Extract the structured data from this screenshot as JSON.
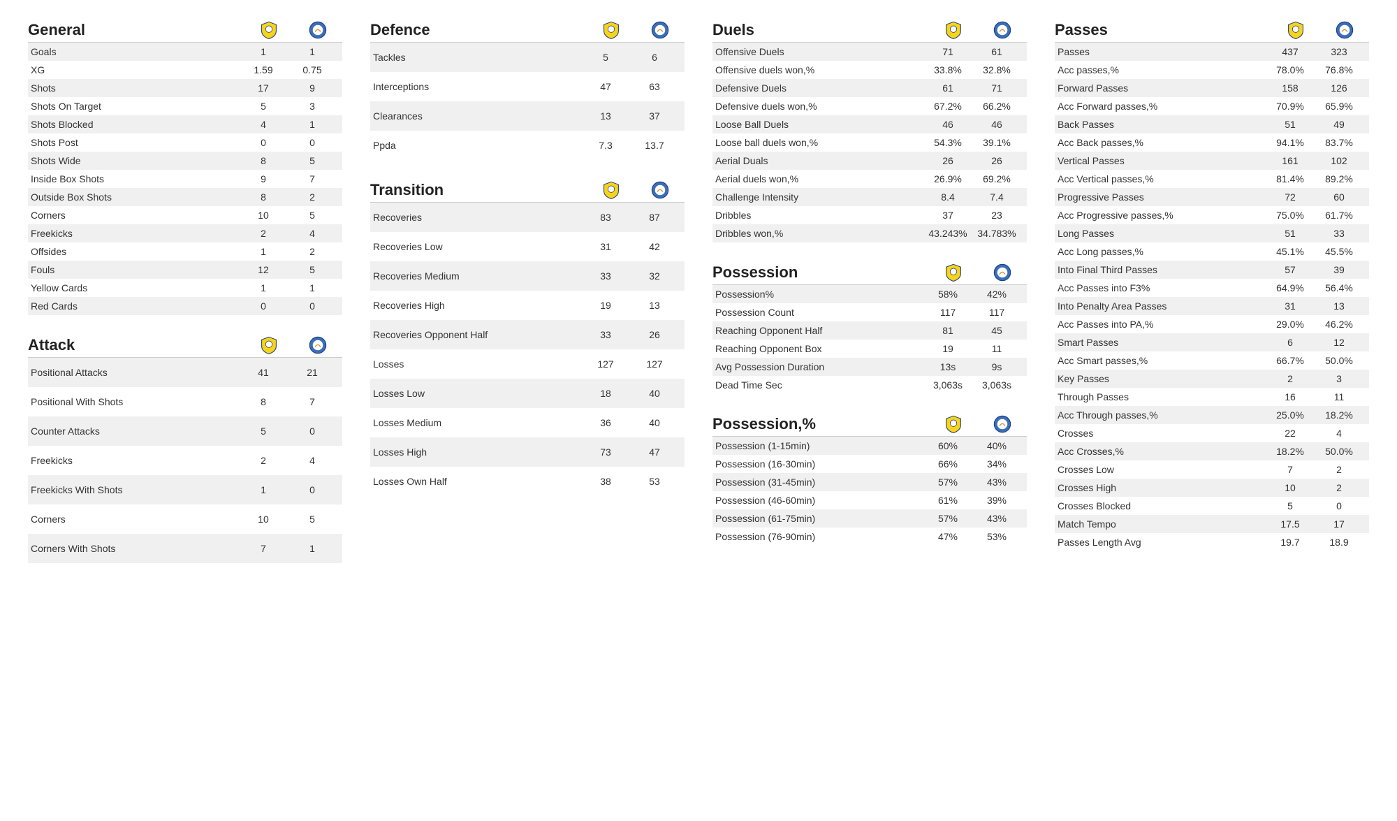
{
  "style": {
    "background_color": "#ffffff",
    "row_stripe_color": "#f0f0f0",
    "text_color": "#222222",
    "border_color": "#cccccc",
    "title_fontsize_pt": 16,
    "row_fontsize_pt": 10,
    "team_a_crest": {
      "primary": "#f7d417",
      "secondary": "#1a3a8a",
      "type": "shield"
    },
    "team_b_crest": {
      "primary": "#3a6fb7",
      "secondary": "#ffffff",
      "type": "circle"
    }
  },
  "sections": {
    "general": {
      "title": "General",
      "rows": [
        {
          "label": "Goals",
          "a": "1",
          "b": "1"
        },
        {
          "label": "XG",
          "a": "1.59",
          "b": "0.75"
        },
        {
          "label": "Shots",
          "a": "17",
          "b": "9"
        },
        {
          "label": "Shots On Target",
          "a": "5",
          "b": "3"
        },
        {
          "label": "Shots Blocked",
          "a": "4",
          "b": "1"
        },
        {
          "label": "Shots Post",
          "a": "0",
          "b": "0"
        },
        {
          "label": "Shots Wide",
          "a": "8",
          "b": "5"
        },
        {
          "label": "Inside Box Shots",
          "a": "9",
          "b": "7"
        },
        {
          "label": "Outside Box Shots",
          "a": "8",
          "b": "2"
        },
        {
          "label": "Corners",
          "a": "10",
          "b": "5"
        },
        {
          "label": "Freekicks",
          "a": "2",
          "b": "4"
        },
        {
          "label": "Offsides",
          "a": "1",
          "b": "2"
        },
        {
          "label": "Fouls",
          "a": "12",
          "b": "5"
        },
        {
          "label": "Yellow Cards",
          "a": "1",
          "b": "1"
        },
        {
          "label": "Red Cards",
          "a": "0",
          "b": "0"
        }
      ]
    },
    "attack": {
      "title": "Attack",
      "rows": [
        {
          "label": "Positional Attacks",
          "a": "41",
          "b": "21"
        },
        {
          "label": "Positional With Shots",
          "a": "8",
          "b": "7"
        },
        {
          "label": "Counter Attacks",
          "a": "5",
          "b": "0"
        },
        {
          "label": "Freekicks",
          "a": "2",
          "b": "4"
        },
        {
          "label": "Freekicks With Shots",
          "a": "1",
          "b": "0"
        },
        {
          "label": "Corners",
          "a": "10",
          "b": "5"
        },
        {
          "label": "Corners With Shots",
          "a": "7",
          "b": "1"
        }
      ]
    },
    "defence": {
      "title": "Defence",
      "rows": [
        {
          "label": "Tackles",
          "a": "5",
          "b": "6"
        },
        {
          "label": "Interceptions",
          "a": "47",
          "b": "63"
        },
        {
          "label": "Clearances",
          "a": "13",
          "b": "37"
        },
        {
          "label": "Ppda",
          "a": "7.3",
          "b": "13.7"
        }
      ]
    },
    "transition": {
      "title": "Transition",
      "rows": [
        {
          "label": "Recoveries",
          "a": "83",
          "b": "87"
        },
        {
          "label": "Recoveries Low",
          "a": "31",
          "b": "42"
        },
        {
          "label": "Recoveries Medium",
          "a": "33",
          "b": "32"
        },
        {
          "label": "Recoveries High",
          "a": "19",
          "b": "13"
        },
        {
          "label": "Recoveries Opponent Half",
          "a": "33",
          "b": "26"
        },
        {
          "label": "Losses",
          "a": "127",
          "b": "127"
        },
        {
          "label": "Losses Low",
          "a": "18",
          "b": "40"
        },
        {
          "label": "Losses Medium",
          "a": "36",
          "b": "40"
        },
        {
          "label": "Losses High",
          "a": "73",
          "b": "47"
        },
        {
          "label": "Losses Own Half",
          "a": "38",
          "b": "53"
        }
      ]
    },
    "duels": {
      "title": "Duels",
      "rows": [
        {
          "label": "Offensive Duels",
          "a": "71",
          "b": "61"
        },
        {
          "label": "Offensive duels won,%",
          "a": "33.8%",
          "b": "32.8%"
        },
        {
          "label": "Defensive Duels",
          "a": "61",
          "b": "71"
        },
        {
          "label": "Defensive duels won,%",
          "a": "67.2%",
          "b": "66.2%"
        },
        {
          "label": "Loose Ball Duels",
          "a": "46",
          "b": "46"
        },
        {
          "label": "Loose ball duels won,%",
          "a": "54.3%",
          "b": "39.1%"
        },
        {
          "label": "Aerial Duals",
          "a": "26",
          "b": "26"
        },
        {
          "label": "Aerial duels won,%",
          "a": "26.9%",
          "b": "69.2%"
        },
        {
          "label": "Challenge Intensity",
          "a": "8.4",
          "b": "7.4"
        },
        {
          "label": "Dribbles",
          "a": "37",
          "b": "23"
        },
        {
          "label": "Dribbles won,%",
          "a": "43.243%",
          "b": "34.783%"
        }
      ]
    },
    "possession": {
      "title": "Possession",
      "rows": [
        {
          "label": "Possession%",
          "a": "58%",
          "b": "42%"
        },
        {
          "label": "Possession Count",
          "a": "117",
          "b": "117"
        },
        {
          "label": "Reaching Opponent Half",
          "a": "81",
          "b": "45"
        },
        {
          "label": "Reaching Opponent Box",
          "a": "19",
          "b": "11"
        },
        {
          "label": "Avg Possession Duration",
          "a": "13s",
          "b": "9s"
        },
        {
          "label": "Dead Time Sec",
          "a": "3,063s",
          "b": "3,063s"
        }
      ]
    },
    "possession_pct": {
      "title": "Possession,%",
      "rows": [
        {
          "label": "Possession (1-15min)",
          "a": "60%",
          "b": "40%"
        },
        {
          "label": "Possession (16-30min)",
          "a": "66%",
          "b": "34%"
        },
        {
          "label": "Possession (31-45min)",
          "a": "57%",
          "b": "43%"
        },
        {
          "label": "Possession (46-60min)",
          "a": "61%",
          "b": "39%"
        },
        {
          "label": "Possession (61-75min)",
          "a": "57%",
          "b": "43%"
        },
        {
          "label": "Possession (76-90min)",
          "a": "47%",
          "b": "53%"
        }
      ]
    },
    "passes": {
      "title": "Passes",
      "rows": [
        {
          "label": "Passes",
          "a": "437",
          "b": "323"
        },
        {
          "label": "Acc passes,%",
          "a": "78.0%",
          "b": "76.8%"
        },
        {
          "label": "Forward Passes",
          "a": "158",
          "b": "126"
        },
        {
          "label": "Acc Forward passes,%",
          "a": "70.9%",
          "b": "65.9%"
        },
        {
          "label": "Back Passes",
          "a": "51",
          "b": "49"
        },
        {
          "label": "Acc Back passes,%",
          "a": "94.1%",
          "b": "83.7%"
        },
        {
          "label": "Vertical Passes",
          "a": "161",
          "b": "102"
        },
        {
          "label": "Acc Vertical passes,%",
          "a": "81.4%",
          "b": "89.2%"
        },
        {
          "label": "Progressive Passes",
          "a": "72",
          "b": "60"
        },
        {
          "label": "Acc Progressive passes,%",
          "a": "75.0%",
          "b": "61.7%"
        },
        {
          "label": "Long Passes",
          "a": "51",
          "b": "33"
        },
        {
          "label": "Acc Long passes,%",
          "a": "45.1%",
          "b": "45.5%"
        },
        {
          "label": "Into Final Third Passes",
          "a": "57",
          "b": "39"
        },
        {
          "label": "Acc Passes into F3%",
          "a": "64.9%",
          "b": "56.4%"
        },
        {
          "label": "Into Penalty Area Passes",
          "a": "31",
          "b": "13"
        },
        {
          "label": "Acc Passes into PA,%",
          "a": "29.0%",
          "b": "46.2%"
        },
        {
          "label": "Smart Passes",
          "a": "6",
          "b": "12"
        },
        {
          "label": "Acc Smart passes,%",
          "a": "66.7%",
          "b": "50.0%"
        },
        {
          "label": "Key Passes",
          "a": "2",
          "b": "3"
        },
        {
          "label": "Through Passes",
          "a": "16",
          "b": "11"
        },
        {
          "label": "Acc Through passes,%",
          "a": "25.0%",
          "b": "18.2%"
        },
        {
          "label": "Crosses",
          "a": "22",
          "b": "4"
        },
        {
          "label": "Acc Crosses,%",
          "a": "18.2%",
          "b": "50.0%"
        },
        {
          "label": "Crosses Low",
          "a": "7",
          "b": "2"
        },
        {
          "label": "Crosses High",
          "a": "10",
          "b": "2"
        },
        {
          "label": "Crosses Blocked",
          "a": "5",
          "b": "0"
        },
        {
          "label": "Match Tempo",
          "a": "17.5",
          "b": "17"
        },
        {
          "label": "Passes Length Avg",
          "a": "19.7",
          "b": "18.9"
        }
      ]
    }
  },
  "layout": {
    "columns": [
      [
        "general",
        "attack"
      ],
      [
        "defence",
        "transition"
      ],
      [
        "duels",
        "possession",
        "possession_pct"
      ],
      [
        "passes"
      ]
    ],
    "tall_sections": [
      "attack",
      "defence",
      "transition"
    ]
  }
}
